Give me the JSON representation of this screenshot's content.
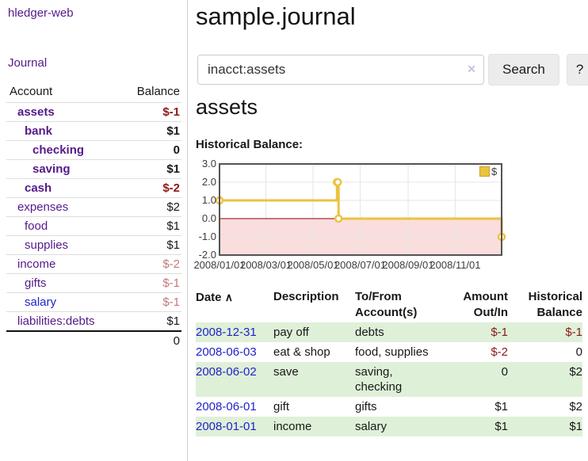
{
  "app": {
    "title": "hledger-web"
  },
  "colors": {
    "link_purple": "#551a8b",
    "link_blue": "#2222cc",
    "negative_strong": "#8b1a1a",
    "negative_dim": "#c47a7a",
    "row_stripe_green": "#dff0d8",
    "chart_series_yellow": "#edc240",
    "chart_negative_pink": "#fadddd",
    "chart_zero_line_red": "#8b0000"
  },
  "sidebar": {
    "nav": {
      "journal": "Journal"
    },
    "table": {
      "headers": {
        "account": "Account",
        "balance": "Balance"
      },
      "rows": [
        {
          "account": "assets",
          "balance": "$-1"
        },
        {
          "account": "bank",
          "balance": "$1"
        },
        {
          "account": "checking",
          "balance": "0"
        },
        {
          "account": "saving",
          "balance": "$1"
        },
        {
          "account": "cash",
          "balance": "$-2"
        },
        {
          "account": "expenses",
          "balance": "$2"
        },
        {
          "account": "food",
          "balance": "$1"
        },
        {
          "account": "supplies",
          "balance": "$1"
        },
        {
          "account": "income",
          "balance": "$-2"
        },
        {
          "account": "gifts",
          "balance": "$-1"
        },
        {
          "account": "salary",
          "balance": "$-1"
        },
        {
          "account": "liabilities:debts",
          "balance": "$1"
        }
      ],
      "total": "0"
    }
  },
  "main": {
    "title": "sample.journal",
    "search": {
      "value": "inacct:assets",
      "clear_icon": "✕",
      "search_button": "Search",
      "help_button": "?"
    },
    "account_heading": "assets",
    "chart_heading": "Historical Balance:",
    "register": {
      "headers": {
        "date": "Date",
        "description": "Description",
        "accounts": "To/From Account(s)",
        "amount": "Amount Out/In",
        "balance": "Historical Balance"
      },
      "sort_icon": "∧",
      "rows": [
        {
          "date": "2008-12-31",
          "description": "pay off",
          "accounts": "debts",
          "amount": "$-1",
          "balance": "$-1"
        },
        {
          "date": "2008-06-03",
          "description": "eat & shop",
          "accounts": "food, supplies",
          "amount": "$-2",
          "balance": "0"
        },
        {
          "date": "2008-06-02",
          "description": "save",
          "accounts": "saving, checking",
          "amount": "0",
          "balance": "$2"
        },
        {
          "date": "2008-06-01",
          "description": "gift",
          "accounts": "gifts",
          "amount": "$1",
          "balance": "$2"
        },
        {
          "date": "2008-01-01",
          "description": "income",
          "accounts": "salary",
          "amount": "$1",
          "balance": "$1"
        }
      ]
    }
  },
  "chart_data": {
    "type": "line",
    "style": "step",
    "title": "Historical Balance:",
    "series": [
      {
        "name": "$",
        "color": "#edc240"
      }
    ],
    "points": [
      {
        "date": "2008-01-01",
        "value": 1
      },
      {
        "date": "2008-06-01",
        "value": 2
      },
      {
        "date": "2008-06-02",
        "value": 2
      },
      {
        "date": "2008-06-03",
        "value": 0
      },
      {
        "date": "2008-12-31",
        "value": -1
      }
    ],
    "ylim": [
      -2,
      3
    ],
    "yticks": [
      {
        "v": 3,
        "label": "3.0"
      },
      {
        "v": 2,
        "label": "2.0"
      },
      {
        "v": 1,
        "label": "1.0"
      },
      {
        "v": 0,
        "label": "0.0"
      },
      {
        "v": -1,
        "label": "-1.0"
      },
      {
        "v": -2,
        "label": "-2.0"
      }
    ],
    "xticks": [
      {
        "date": "2008-01-01",
        "label": "2008/01/01"
      },
      {
        "date": "2008-03-01",
        "label": "2008/03/01"
      },
      {
        "date": "2008-05-01",
        "label": "2008/05/01"
      },
      {
        "date": "2008-07-01",
        "label": "2008/07/01"
      },
      {
        "date": "2008-09-01",
        "label": "2008/09/01"
      },
      {
        "date": "2008-11-01",
        "label": "2008/11/01"
      }
    ],
    "xrange": [
      "2008-01-01",
      "2008-12-31"
    ],
    "grid": true,
    "legend_position": "top-right",
    "negative_region_color": "#fadddd",
    "zero_line_color": "#8b0000",
    "series_color": "#edc240"
  }
}
